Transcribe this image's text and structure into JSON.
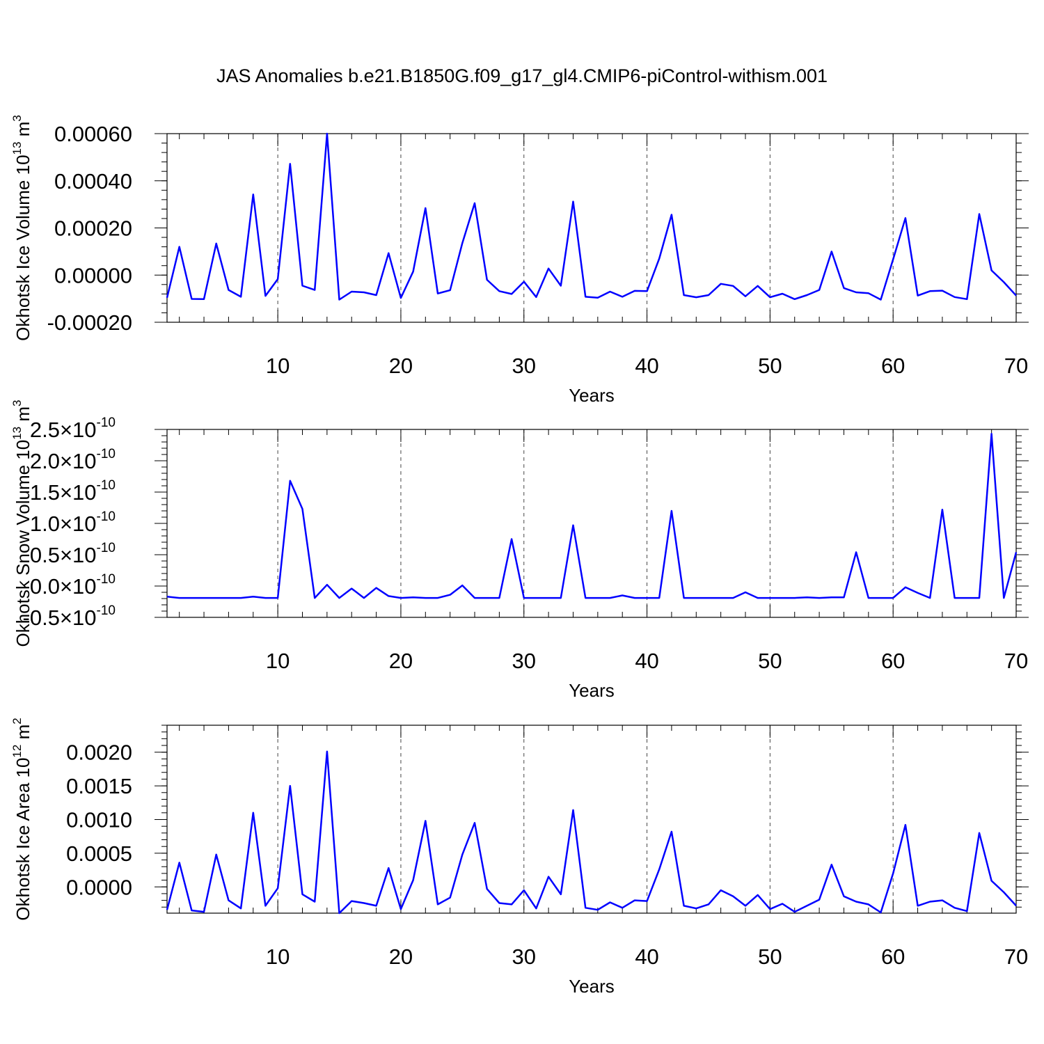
{
  "title": "JAS Anomalies b.e21.B1850G.f09_g17_gl4.CMIP6-piControl-withism.001",
  "colors": {
    "series": "#0000ff",
    "frame": "#000000",
    "grid": "#444444"
  },
  "chart_data": [
    {
      "type": "line",
      "ylabel": "Okhotsk Ice Volume 10",
      "ylabel_exp": "13",
      "ylabel_unit": " m",
      "ylabel_unit_exp": "3",
      "xlabel": "Years",
      "xlim": [
        1,
        70
      ],
      "ylim": [
        -0.0002,
        0.0006
      ],
      "x_ticks": [
        10,
        20,
        30,
        40,
        50,
        60,
        70
      ],
      "x_tick_labels": [
        "10",
        "20",
        "30",
        "40",
        "50",
        "60",
        "70"
      ],
      "y_ticks": [
        -0.0002,
        0.0,
        0.0002,
        0.0004,
        0.0006
      ],
      "y_tick_labels": [
        "-0.00020",
        "0.00000",
        "0.00020",
        "0.00040",
        "0.00060"
      ],
      "x_grid": true,
      "x": [
        1,
        2,
        3,
        4,
        5,
        6,
        7,
        8,
        9,
        10,
        11,
        12,
        13,
        14,
        15,
        16,
        17,
        18,
        19,
        20,
        21,
        22,
        23,
        24,
        25,
        26,
        27,
        28,
        29,
        30,
        31,
        32,
        33,
        34,
        35,
        36,
        37,
        38,
        39,
        40,
        41,
        42,
        43,
        44,
        45,
        46,
        47,
        48,
        49,
        50,
        51,
        52,
        53,
        54,
        55,
        56,
        57,
        58,
        59,
        60,
        61,
        62,
        63,
        64,
        65,
        66,
        67,
        68,
        69,
        70
      ],
      "values": [
        -9.6e-05,
        0.00012,
        -0.000101,
        -0.000102,
        0.000134,
        -6.3e-05,
        -9.2e-05,
        0.000342,
        -8.8e-05,
        -1.7e-05,
        0.000472,
        -4.5e-05,
        -6.3e-05,
        0.0006,
        -0.000104,
        -7e-05,
        -7.3e-05,
        -8.5e-05,
        9.3e-05,
        -9.7e-05,
        1.5e-05,
        0.000284,
        -7.8e-05,
        -6.4e-05,
        0.000136,
        0.000305,
        -2e-05,
        -6.8e-05,
        -8e-05,
        -2.8e-05,
        -9.3e-05,
        2.8e-05,
        -4.5e-05,
        0.000312,
        -9.2e-05,
        -9.6e-05,
        -7e-05,
        -9.2e-05,
        -6.7e-05,
        -6.8e-05,
        7e-05,
        0.000256,
        -8.5e-05,
        -9.4e-05,
        -8.5e-05,
        -3.7e-05,
        -4.6e-05,
        -9e-05,
        -4.6e-05,
        -9.4e-05,
        -7.9e-05,
        -0.000102,
        -8.5e-05,
        -6.3e-05,
        0.0001,
        -5.5e-05,
        -7.3e-05,
        -7.7e-05,
        -0.000104,
        6.7e-05,
        0.000242,
        -8.7e-05,
        -6.8e-05,
        -6.6e-05,
        -9.3e-05,
        -0.000102,
        0.000259,
        2e-05,
        -3e-05,
        -8.7e-05
      ]
    },
    {
      "type": "line",
      "ylabel": "Okhotsk Snow Volume 10",
      "ylabel_exp": "13",
      "ylabel_unit": " m",
      "ylabel_unit_exp": "3",
      "xlabel": "Years",
      "xlim": [
        1,
        70
      ],
      "ylim": [
        -5e-11,
        2.5e-10
      ],
      "x_ticks": [
        10,
        20,
        30,
        40,
        50,
        60,
        70
      ],
      "x_tick_labels": [
        "10",
        "20",
        "30",
        "40",
        "50",
        "60",
        "70"
      ],
      "y_ticks": [
        -5e-11,
        0.0,
        5e-11,
        1e-10,
        1.5e-10,
        2e-10,
        2.5e-10
      ],
      "y_tick_labels": [
        {
          "mant": "-0.5",
          "exp": "-10"
        },
        {
          "mant": "0.0",
          "exp": "-10"
        },
        {
          "mant": "0.5",
          "exp": "-10"
        },
        {
          "mant": "1.0",
          "exp": "-10"
        },
        {
          "mant": "1.5",
          "exp": "-10"
        },
        {
          "mant": "2.0",
          "exp": "-10"
        },
        {
          "mant": "2.5",
          "exp": "-10"
        }
      ],
      "x_grid": true,
      "x": [
        1,
        2,
        3,
        4,
        5,
        6,
        7,
        8,
        9,
        10,
        11,
        12,
        13,
        14,
        15,
        16,
        17,
        18,
        19,
        20,
        21,
        22,
        23,
        24,
        25,
        26,
        27,
        28,
        29,
        30,
        31,
        32,
        33,
        34,
        35,
        36,
        37,
        38,
        39,
        40,
        41,
        42,
        43,
        44,
        45,
        46,
        47,
        48,
        49,
        50,
        51,
        52,
        53,
        54,
        55,
        56,
        57,
        58,
        59,
        60,
        61,
        62,
        63,
        64,
        65,
        66,
        67,
        68,
        69,
        70
      ],
      "values": [
        -1.7e-11,
        -1.9e-11,
        -1.9e-11,
        -1.9e-11,
        -1.9e-11,
        -1.9e-11,
        -1.9e-11,
        -1.7e-11,
        -1.9e-11,
        -1.9e-11,
        1.68e-10,
        1.23e-10,
        -1.9e-11,
        2e-12,
        -1.9e-11,
        -4e-12,
        -1.9e-11,
        -3e-12,
        -1.6e-11,
        -1.9e-11,
        -1.8e-11,
        -1.9e-11,
        -1.9e-11,
        -1.4e-11,
        1e-12,
        -1.9e-11,
        -1.9e-11,
        -1.9e-11,
        7.5e-11,
        -1.9e-11,
        -1.9e-11,
        -1.9e-11,
        -1.9e-11,
        9.7e-11,
        -1.9e-11,
        -1.9e-11,
        -1.9e-11,
        -1.5e-11,
        -1.9e-11,
        -1.9e-11,
        -1.9e-11,
        1.2e-10,
        -1.9e-11,
        -1.9e-11,
        -1.9e-11,
        -1.9e-11,
        -1.9e-11,
        -1e-11,
        -1.9e-11,
        -1.9e-11,
        -1.9e-11,
        -1.9e-11,
        -1.8e-11,
        -1.9e-11,
        -1.8e-11,
        -1.8e-11,
        5.4e-11,
        -1.9e-11,
        -1.9e-11,
        -1.9e-11,
        -2e-12,
        -1.1e-11,
        -1.9e-11,
        1.22e-10,
        -1.9e-11,
        -1.9e-11,
        -1.9e-11,
        2.43e-10,
        -1.9e-11,
        5.4e-11
      ]
    },
    {
      "type": "line",
      "ylabel": "Okhotsk Ice Area 10",
      "ylabel_exp": "12",
      "ylabel_unit": " m",
      "ylabel_unit_exp": "2",
      "xlabel": "Years",
      "xlim": [
        1,
        70
      ],
      "ylim": [
        -0.00039,
        0.0024
      ],
      "x_ticks": [
        10,
        20,
        30,
        40,
        50,
        60,
        70
      ],
      "x_tick_labels": [
        "10",
        "20",
        "30",
        "40",
        "50",
        "60",
        "70"
      ],
      "y_ticks": [
        0.0,
        0.0005,
        0.001,
        0.0015,
        0.002
      ],
      "y_tick_labels": [
        "0.0000",
        "0.0005",
        "0.0010",
        "0.0015",
        "0.0020"
      ],
      "x_grid": true,
      "x": [
        1,
        2,
        3,
        4,
        5,
        6,
        7,
        8,
        9,
        10,
        11,
        12,
        13,
        14,
        15,
        16,
        17,
        18,
        19,
        20,
        21,
        22,
        23,
        24,
        25,
        26,
        27,
        28,
        29,
        30,
        31,
        32,
        33,
        34,
        35,
        36,
        37,
        38,
        39,
        40,
        41,
        42,
        43,
        44,
        45,
        46,
        47,
        48,
        49,
        50,
        51,
        52,
        53,
        54,
        55,
        56,
        57,
        58,
        59,
        60,
        61,
        62,
        63,
        64,
        65,
        66,
        67,
        68,
        69,
        70
      ],
      "values": [
        -0.00034,
        0.00036,
        -0.00035,
        -0.00037,
        0.00048,
        -0.0002,
        -0.00032,
        0.0011,
        -0.00028,
        -2e-05,
        0.0015,
        -0.00011,
        -0.00022,
        0.00201,
        -0.00039,
        -0.00021,
        -0.00024,
        -0.00028,
        0.00028,
        -0.00033,
        0.0001,
        0.00098,
        -0.00026,
        -0.00016,
        0.00048,
        0.00095,
        -3e-05,
        -0.00024,
        -0.00026,
        -5e-05,
        -0.00032,
        0.00015,
        -0.00011,
        0.00114,
        -0.00031,
        -0.00034,
        -0.00023,
        -0.00031,
        -0.0002,
        -0.00021,
        0.00026,
        0.00082,
        -0.00028,
        -0.00032,
        -0.00026,
        -5e-05,
        -0.00014,
        -0.00028,
        -0.00012,
        -0.00033,
        -0.00025,
        -0.00037,
        -0.00028,
        -0.00019,
        0.00033,
        -0.00014,
        -0.00022,
        -0.00026,
        -0.00038,
        0.0002,
        0.00092,
        -0.00028,
        -0.00022,
        -0.0002,
        -0.00031,
        -0.00036,
        0.0008,
        9e-05,
        -8e-05,
        -0.00028
      ]
    }
  ]
}
